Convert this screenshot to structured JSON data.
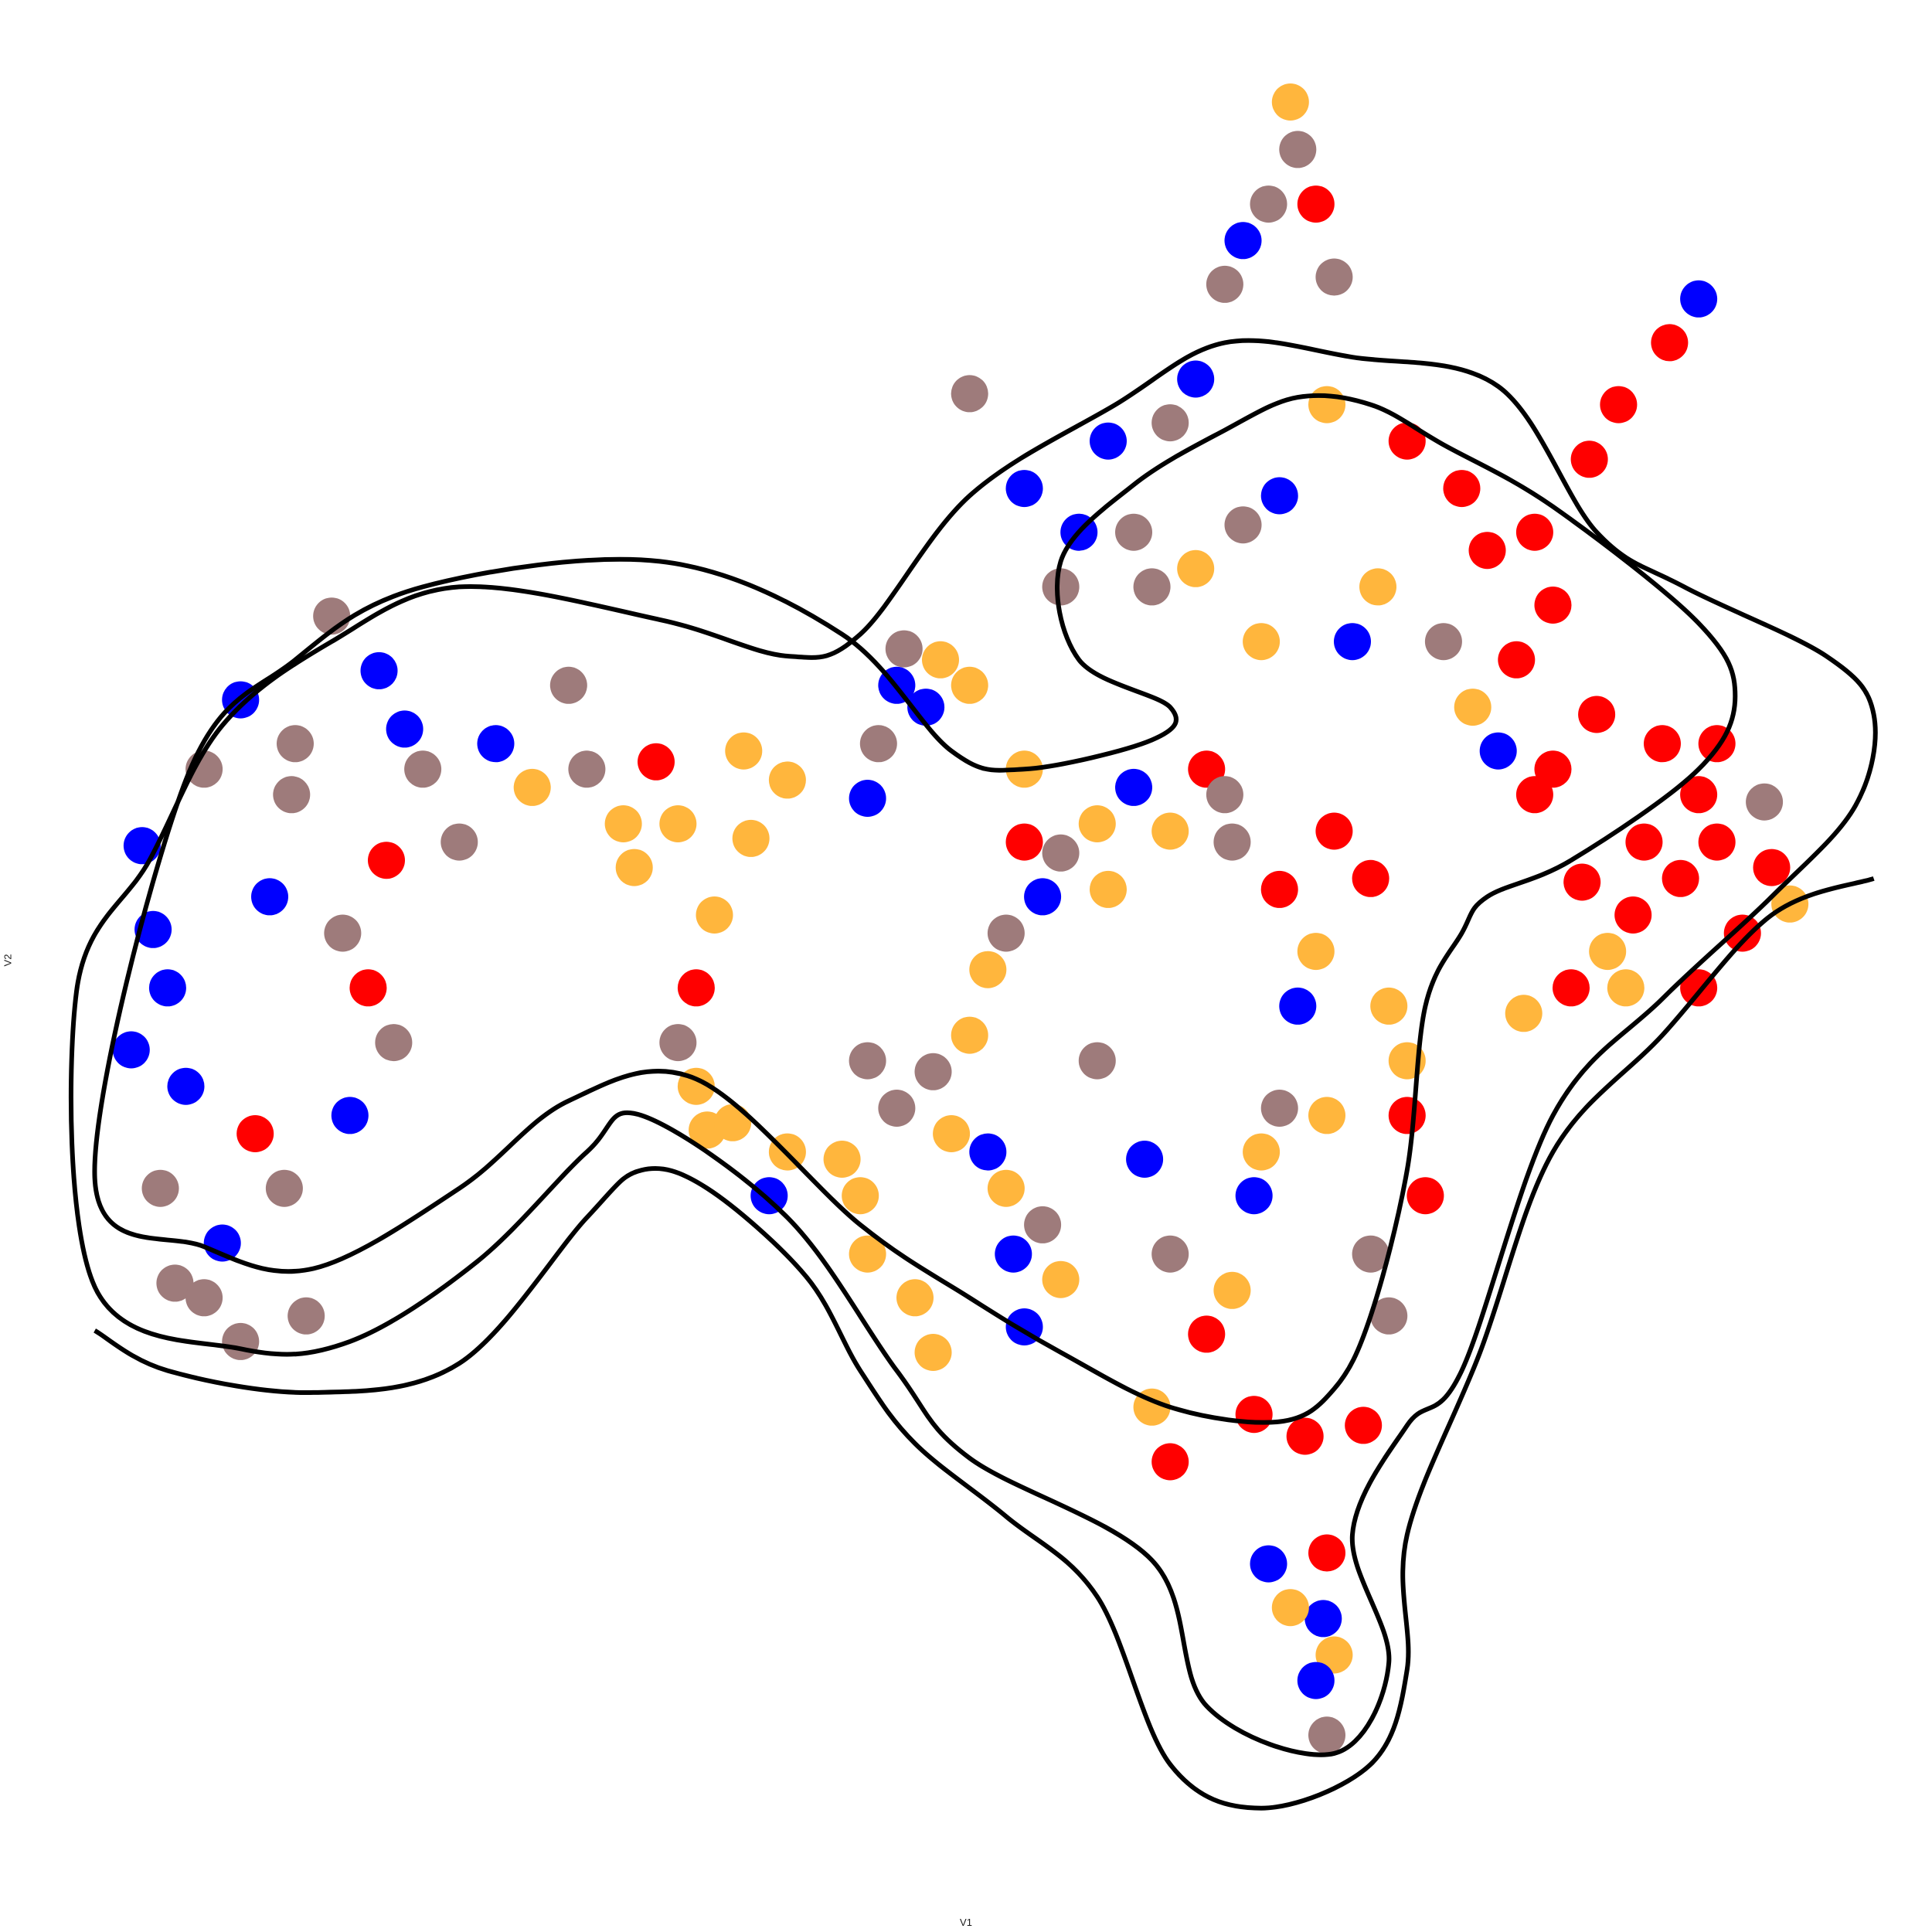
{
  "chart_data": {
    "type": "scatter",
    "title": "",
    "xlabel": "V1",
    "ylabel": "V2",
    "xlim": [
      -2.52,
      2.5
    ],
    "ylim": [
      -2.5,
      2.52
    ],
    "grid": false,
    "legend": "none",
    "point_colors": [
      "#0000ff",
      "#ff0000",
      "#ffb63d",
      "#9e7b7b"
    ],
    "contour_color": "#000000",
    "contours": [
      [
        [
          -2.4,
          -0.99
        ],
        [
          -2.2,
          -1.1
        ],
        [
          -1.8,
          -1.16
        ],
        [
          -1.4,
          -1.08
        ],
        [
          -1.05,
          -0.68
        ],
        [
          -0.9,
          -0.55
        ],
        [
          -0.72,
          -0.6
        ],
        [
          -0.45,
          -0.84
        ],
        [
          -0.3,
          -1.1
        ],
        [
          -0.15,
          -1.3
        ],
        [
          0.1,
          -1.5
        ],
        [
          0.35,
          -1.72
        ],
        [
          0.55,
          -2.18
        ],
        [
          0.8,
          -2.3
        ],
        [
          1.1,
          -2.18
        ],
        [
          1.2,
          -1.92
        ],
        [
          1.2,
          -1.55
        ],
        [
          1.4,
          -1.05
        ],
        [
          1.6,
          -0.5
        ],
        [
          1.9,
          -0.18
        ],
        [
          2.2,
          0.15
        ],
        [
          2.48,
          0.25
        ]
      ],
      [
        [
          -2.4,
          -0.87
        ],
        [
          -2.0,
          -1.04
        ],
        [
          -1.7,
          -1.02
        ],
        [
          -1.35,
          -0.8
        ],
        [
          -1.05,
          -0.5
        ],
        [
          -0.9,
          -0.4
        ],
        [
          -0.5,
          -0.68
        ],
        [
          -0.2,
          -1.1
        ],
        [
          0.0,
          -1.34
        ],
        [
          0.5,
          -1.62
        ],
        [
          0.65,
          -2.02
        ],
        [
          1.0,
          -2.15
        ],
        [
          1.15,
          -1.9
        ],
        [
          1.05,
          -1.55
        ],
        [
          1.2,
          -1.25
        ],
        [
          1.35,
          -1.1
        ],
        [
          1.6,
          -0.4
        ],
        [
          1.9,
          -0.08
        ],
        [
          2.2,
          0.2
        ],
        [
          2.43,
          0.45
        ],
        [
          2.48,
          0.7
        ],
        [
          2.35,
          0.86
        ],
        [
          1.96,
          1.05
        ],
        [
          1.72,
          1.2
        ],
        [
          1.45,
          1.6
        ],
        [
          1.05,
          1.68
        ],
        [
          0.7,
          1.72
        ],
        [
          0.4,
          1.55
        ],
        [
          0.0,
          1.3
        ],
        [
          -0.3,
          0.92
        ],
        [
          -0.5,
          0.86
        ],
        [
          -0.85,
          0.96
        ],
        [
          -1.4,
          1.05
        ],
        [
          -1.75,
          0.9
        ],
        [
          -2.05,
          0.67
        ],
        [
          -2.25,
          0.3
        ],
        [
          -2.45,
          -0.06
        ]
      ],
      [
        [
          -2.4,
          -0.57
        ],
        [
          -2.1,
          -0.76
        ],
        [
          -1.8,
          -0.82
        ],
        [
          -1.4,
          -0.6
        ],
        [
          -1.1,
          -0.36
        ],
        [
          -0.75,
          -0.3
        ],
        [
          -0.3,
          -0.7
        ],
        [
          0.0,
          -0.9
        ],
        [
          0.25,
          -1.05
        ],
        [
          0.55,
          -1.2
        ],
        [
          0.85,
          -1.24
        ],
        [
          1.0,
          -1.15
        ],
        [
          1.1,
          -0.95
        ],
        [
          1.2,
          -0.55
        ],
        [
          1.25,
          -0.1
        ],
        [
          1.35,
          0.1
        ],
        [
          1.42,
          0.2
        ],
        [
          1.65,
          0.3
        ],
        [
          2.0,
          0.55
        ],
        [
          2.1,
          0.75
        ],
        [
          2.0,
          0.95
        ],
        [
          1.6,
          1.27
        ],
        [
          1.3,
          1.44
        ],
        [
          1.1,
          1.55
        ],
        [
          0.9,
          1.57
        ],
        [
          0.7,
          1.48
        ],
        [
          0.45,
          1.33
        ],
        [
          0.25,
          1.12
        ],
        [
          0.3,
          0.85
        ],
        [
          0.55,
          0.72
        ],
        [
          0.5,
          0.63
        ],
        [
          0.15,
          0.55
        ],
        [
          -0.05,
          0.6
        ],
        [
          -0.35,
          0.92
        ],
        [
          -0.85,
          1.12
        ],
        [
          -1.5,
          1.05
        ],
        [
          -1.85,
          0.85
        ],
        [
          -2.15,
          0.52
        ]
      ]
    ],
    "points": [
      {
        "x": -2.18,
        "y": -0.86,
        "c": "#9e7b7b"
      },
      {
        "x": -2.1,
        "y": -0.9,
        "c": "#9e7b7b"
      },
      {
        "x": -2.22,
        "y": -0.6,
        "c": "#9e7b7b"
      },
      {
        "x": -2.05,
        "y": -0.75,
        "c": "#0000ff"
      },
      {
        "x": -2.15,
        "y": -0.32,
        "c": "#0000ff"
      },
      {
        "x": -2.3,
        "y": -0.22,
        "c": "#0000ff"
      },
      {
        "x": -2.2,
        "y": -0.05,
        "c": "#0000ff"
      },
      {
        "x": -2.24,
        "y": 0.11,
        "c": "#0000ff"
      },
      {
        "x": -2.27,
        "y": 0.34,
        "c": "#0000ff"
      },
      {
        "x": -2.1,
        "y": 0.55,
        "c": "#9e7b7b"
      },
      {
        "x": -2.0,
        "y": 0.74,
        "c": "#0000ff"
      },
      {
        "x": -1.85,
        "y": 0.62,
        "c": "#9e7b7b"
      },
      {
        "x": -1.62,
        "y": 0.82,
        "c": "#0000ff"
      },
      {
        "x": -1.55,
        "y": 0.66,
        "c": "#0000ff"
      },
      {
        "x": -1.5,
        "y": 0.55,
        "c": "#9e7b7b"
      },
      {
        "x": -1.6,
        "y": 0.3,
        "c": "#ff0000"
      },
      {
        "x": -1.72,
        "y": 0.1,
        "c": "#9e7b7b"
      },
      {
        "x": -1.65,
        "y": -0.05,
        "c": "#ff0000"
      },
      {
        "x": -1.58,
        "y": -0.2,
        "c": "#9e7b7b"
      },
      {
        "x": -1.86,
        "y": 0.48,
        "c": "#9e7b7b"
      },
      {
        "x": -1.92,
        "y": 0.2,
        "c": "#0000ff"
      },
      {
        "x": -1.4,
        "y": 0.35,
        "c": "#9e7b7b"
      },
      {
        "x": -1.3,
        "y": 0.62,
        "c": "#0000ff"
      },
      {
        "x": -1.2,
        "y": 0.5,
        "c": "#ffb63d"
      },
      {
        "x": -1.05,
        "y": 0.55,
        "c": "#9e7b7b"
      },
      {
        "x": -0.86,
        "y": 0.57,
        "c": "#ff0000"
      },
      {
        "x": -0.95,
        "y": 0.4,
        "c": "#ffb63d"
      },
      {
        "x": -1.1,
        "y": 0.78,
        "c": "#9e7b7b"
      },
      {
        "x": -1.75,
        "y": 0.97,
        "c": "#9e7b7b"
      },
      {
        "x": -1.7,
        "y": -0.4,
        "c": "#0000ff"
      },
      {
        "x": -1.88,
        "y": -0.6,
        "c": "#9e7b7b"
      },
      {
        "x": -1.96,
        "y": -0.45,
        "c": "#ff0000"
      },
      {
        "x": -1.82,
        "y": -0.95,
        "c": "#9e7b7b"
      },
      {
        "x": -2.0,
        "y": -1.02,
        "c": "#9e7b7b"
      },
      {
        "x": -0.7,
        "y": 0.15,
        "c": "#ffb63d"
      },
      {
        "x": -0.75,
        "y": -0.05,
        "c": "#ff0000"
      },
      {
        "x": -0.8,
        "y": -0.2,
        "c": "#9e7b7b"
      },
      {
        "x": -0.8,
        "y": 0.4,
        "c": "#ffb63d"
      },
      {
        "x": -0.5,
        "y": 0.52,
        "c": "#ffb63d"
      },
      {
        "x": -0.62,
        "y": 0.6,
        "c": "#ffb63d"
      },
      {
        "x": -0.6,
        "y": 0.36,
        "c": "#ffb63d"
      },
      {
        "x": -0.92,
        "y": 0.28,
        "c": "#ffb63d"
      },
      {
        "x": -0.75,
        "y": -0.32,
        "c": "#ffb63d"
      },
      {
        "x": -0.72,
        "y": -0.44,
        "c": "#ffb63d"
      },
      {
        "x": -0.65,
        "y": -0.42,
        "c": "#ffb63d"
      },
      {
        "x": -0.5,
        "y": -0.5,
        "c": "#ffb63d"
      },
      {
        "x": -0.55,
        "y": -0.62,
        "c": "#0000ff"
      },
      {
        "x": -0.35,
        "y": -0.52,
        "c": "#ffb63d"
      },
      {
        "x": -0.3,
        "y": -0.62,
        "c": "#ffb63d"
      },
      {
        "x": -0.28,
        "y": -0.78,
        "c": "#ffb63d"
      },
      {
        "x": -0.15,
        "y": -0.9,
        "c": "#ffb63d"
      },
      {
        "x": -0.1,
        "y": -1.05,
        "c": "#ffb63d"
      },
      {
        "x": -0.2,
        "y": -0.38,
        "c": "#9e7b7b"
      },
      {
        "x": -0.1,
        "y": -0.28,
        "c": "#9e7b7b"
      },
      {
        "x": -0.28,
        "y": -0.25,
        "c": "#9e7b7b"
      },
      {
        "x": 0.0,
        "y": -0.18,
        "c": "#ffb63d"
      },
      {
        "x": -0.05,
        "y": -0.45,
        "c": "#ffb63d"
      },
      {
        "x": 0.05,
        "y": -0.5,
        "c": "#0000ff"
      },
      {
        "x": 0.1,
        "y": -0.6,
        "c": "#ffb63d"
      },
      {
        "x": 0.12,
        "y": -0.78,
        "c": "#0000ff"
      },
      {
        "x": 0.15,
        "y": -0.98,
        "c": "#0000ff"
      },
      {
        "x": 0.25,
        "y": -0.85,
        "c": "#ffb63d"
      },
      {
        "x": 0.2,
        "y": -0.7,
        "c": "#9e7b7b"
      },
      {
        "x": 0.05,
        "y": 0.0,
        "c": "#ffb63d"
      },
      {
        "x": 0.1,
        "y": 0.1,
        "c": "#9e7b7b"
      },
      {
        "x": 0.2,
        "y": 0.2,
        "c": "#0000ff"
      },
      {
        "x": 0.25,
        "y": 0.32,
        "c": "#9e7b7b"
      },
      {
        "x": 0.15,
        "y": 0.35,
        "c": "#ff0000"
      },
      {
        "x": 0.35,
        "y": 0.4,
        "c": "#ffb63d"
      },
      {
        "x": 0.45,
        "y": 0.5,
        "c": "#0000ff"
      },
      {
        "x": 0.55,
        "y": 0.38,
        "c": "#ffb63d"
      },
      {
        "x": 0.38,
        "y": 0.22,
        "c": "#ffb63d"
      },
      {
        "x": 0.35,
        "y": -0.25,
        "c": "#9e7b7b"
      },
      {
        "x": 0.48,
        "y": -0.52,
        "c": "#0000ff"
      },
      {
        "x": 0.55,
        "y": -0.78,
        "c": "#9e7b7b"
      },
      {
        "x": 0.65,
        "y": -1.0,
        "c": "#ff0000"
      },
      {
        "x": 0.72,
        "y": -0.88,
        "c": "#ffb63d"
      },
      {
        "x": 0.5,
        "y": -1.2,
        "c": "#ffb63d"
      },
      {
        "x": 0.55,
        "y": -1.35,
        "c": "#ff0000"
      },
      {
        "x": 0.78,
        "y": -0.62,
        "c": "#0000ff"
      },
      {
        "x": 0.8,
        "y": -0.5,
        "c": "#ffb63d"
      },
      {
        "x": 0.85,
        "y": -0.38,
        "c": "#9e7b7b"
      },
      {
        "x": 0.9,
        "y": -0.1,
        "c": "#0000ff"
      },
      {
        "x": 0.95,
        "y": 0.05,
        "c": "#ffb63d"
      },
      {
        "x": 0.85,
        "y": 0.22,
        "c": "#ff0000"
      },
      {
        "x": 0.72,
        "y": 0.35,
        "c": "#9e7b7b"
      },
      {
        "x": 0.65,
        "y": 0.55,
        "c": "#ff0000"
      },
      {
        "x": 0.7,
        "y": 0.48,
        "c": "#9e7b7b"
      },
      {
        "x": 1.0,
        "y": 0.38,
        "c": "#ff0000"
      },
      {
        "x": 1.1,
        "y": 0.25,
        "c": "#ff0000"
      },
      {
        "x": 0.98,
        "y": -0.4,
        "c": "#ffb63d"
      },
      {
        "x": 1.1,
        "y": -0.78,
        "c": "#9e7b7b"
      },
      {
        "x": 0.78,
        "y": -1.22,
        "c": "#ff0000"
      },
      {
        "x": 0.92,
        "y": -1.28,
        "c": "#ff0000"
      },
      {
        "x": 0.98,
        "y": -1.6,
        "c": "#ff0000"
      },
      {
        "x": 0.97,
        "y": -1.78,
        "c": "#0000ff"
      },
      {
        "x": 1.0,
        "y": -1.88,
        "c": "#ffb63d"
      },
      {
        "x": 0.98,
        "y": -2.1,
        "c": "#9e7b7b"
      },
      {
        "x": 0.95,
        "y": -1.95,
        "c": "#0000ff"
      },
      {
        "x": 0.88,
        "y": -1.75,
        "c": "#ffb63d"
      },
      {
        "x": 0.82,
        "y": -1.63,
        "c": "#0000ff"
      },
      {
        "x": -0.18,
        "y": 0.88,
        "c": "#9e7b7b"
      },
      {
        "x": -0.2,
        "y": 0.78,
        "c": "#0000ff"
      },
      {
        "x": -0.12,
        "y": 0.72,
        "c": "#0000ff"
      },
      {
        "x": -0.25,
        "y": 0.62,
        "c": "#9e7b7b"
      },
      {
        "x": -0.28,
        "y": 0.47,
        "c": "#0000ff"
      },
      {
        "x": -0.08,
        "y": 0.85,
        "c": "#ffb63d"
      },
      {
        "x": 0.0,
        "y": 0.78,
        "c": "#ffb63d"
      },
      {
        "x": 0.15,
        "y": 0.55,
        "c": "#ffb63d"
      },
      {
        "x": 0.0,
        "y": 1.58,
        "c": "#9e7b7b"
      },
      {
        "x": 0.15,
        "y": 1.32,
        "c": "#0000ff"
      },
      {
        "x": 0.25,
        "y": 1.05,
        "c": "#9e7b7b"
      },
      {
        "x": 0.3,
        "y": 1.2,
        "c": "#0000ff"
      },
      {
        "x": 0.38,
        "y": 1.45,
        "c": "#0000ff"
      },
      {
        "x": 0.55,
        "y": 1.5,
        "c": "#9e7b7b"
      },
      {
        "x": 0.62,
        "y": 1.62,
        "c": "#0000ff"
      },
      {
        "x": 0.7,
        "y": 1.88,
        "c": "#9e7b7b"
      },
      {
        "x": 0.75,
        "y": 2.0,
        "c": "#0000ff"
      },
      {
        "x": 0.82,
        "y": 2.1,
        "c": "#9e7b7b"
      },
      {
        "x": 0.9,
        "y": 2.25,
        "c": "#9e7b7b"
      },
      {
        "x": 0.88,
        "y": 2.38,
        "c": "#ffb63d"
      },
      {
        "x": 0.95,
        "y": 2.1,
        "c": "#ff0000"
      },
      {
        "x": 1.0,
        "y": 1.9,
        "c": "#9e7b7b"
      },
      {
        "x": 0.98,
        "y": 1.55,
        "c": "#ffb63d"
      },
      {
        "x": 0.85,
        "y": 1.3,
        "c": "#0000ff"
      },
      {
        "x": 0.75,
        "y": 1.22,
        "c": "#9e7b7b"
      },
      {
        "x": 0.62,
        "y": 1.1,
        "c": "#ffb63d"
      },
      {
        "x": 0.5,
        "y": 1.05,
        "c": "#9e7b7b"
      },
      {
        "x": 0.45,
        "y": 1.2,
        "c": "#9e7b7b"
      },
      {
        "x": 1.2,
        "y": 1.45,
        "c": "#ff0000"
      },
      {
        "x": 1.35,
        "y": 1.32,
        "c": "#ff0000"
      },
      {
        "x": 1.42,
        "y": 1.15,
        "c": "#ff0000"
      },
      {
        "x": 1.55,
        "y": 1.2,
        "c": "#ff0000"
      },
      {
        "x": 1.6,
        "y": 1.0,
        "c": "#ff0000"
      },
      {
        "x": 1.5,
        "y": 0.85,
        "c": "#ff0000"
      },
      {
        "x": 1.38,
        "y": 0.72,
        "c": "#ffb63d"
      },
      {
        "x": 1.3,
        "y": 0.9,
        "c": "#9e7b7b"
      },
      {
        "x": 1.12,
        "y": 1.05,
        "c": "#ffb63d"
      },
      {
        "x": 1.05,
        "y": 0.9,
        "c": "#0000ff"
      },
      {
        "x": 0.8,
        "y": 0.9,
        "c": "#ffb63d"
      },
      {
        "x": 1.78,
        "y": 1.55,
        "c": "#ff0000"
      },
      {
        "x": 1.92,
        "y": 1.72,
        "c": "#ff0000"
      },
      {
        "x": 2.0,
        "y": 1.84,
        "c": "#0000ff"
      },
      {
        "x": 1.7,
        "y": 1.4,
        "c": "#ff0000"
      },
      {
        "x": 1.9,
        "y": 0.62,
        "c": "#ff0000"
      },
      {
        "x": 2.0,
        "y": 0.48,
        "c": "#ff0000"
      },
      {
        "x": 2.05,
        "y": 0.35,
        "c": "#ff0000"
      },
      {
        "x": 1.95,
        "y": 0.25,
        "c": "#ff0000"
      },
      {
        "x": 1.85,
        "y": 0.35,
        "c": "#ff0000"
      },
      {
        "x": 1.82,
        "y": 0.15,
        "c": "#ff0000"
      },
      {
        "x": 2.12,
        "y": 0.1,
        "c": "#ff0000"
      },
      {
        "x": 2.2,
        "y": 0.28,
        "c": "#ff0000"
      },
      {
        "x": 2.18,
        "y": 0.46,
        "c": "#9e7b7b"
      },
      {
        "x": 2.05,
        "y": 0.62,
        "c": "#ff0000"
      },
      {
        "x": 2.25,
        "y": 0.18,
        "c": "#ffb63d"
      },
      {
        "x": 1.75,
        "y": 0.05,
        "c": "#ffb63d"
      },
      {
        "x": 1.65,
        "y": -0.05,
        "c": "#ff0000"
      },
      {
        "x": 1.52,
        "y": -0.12,
        "c": "#ffb63d"
      },
      {
        "x": 1.6,
        "y": 0.55,
        "c": "#ff0000"
      },
      {
        "x": 1.45,
        "y": 0.6,
        "c": "#0000ff"
      },
      {
        "x": 1.55,
        "y": 0.48,
        "c": "#ff0000"
      },
      {
        "x": 1.68,
        "y": 0.24,
        "c": "#ff0000"
      },
      {
        "x": 1.8,
        "y": -0.05,
        "c": "#ffb63d"
      },
      {
        "x": 2.0,
        "y": -0.05,
        "c": "#ff0000"
      },
      {
        "x": 1.72,
        "y": 0.7,
        "c": "#ff0000"
      },
      {
        "x": 1.2,
        "y": -0.4,
        "c": "#ff0000"
      },
      {
        "x": 1.25,
        "y": -0.62,
        "c": "#ff0000"
      },
      {
        "x": 1.15,
        "y": -0.95,
        "c": "#9e7b7b"
      },
      {
        "x": 1.08,
        "y": -1.25,
        "c": "#ff0000"
      },
      {
        "x": 1.2,
        "y": -0.25,
        "c": "#ffb63d"
      },
      {
        "x": 1.15,
        "y": -0.1,
        "c": "#ffb63d"
      }
    ]
  }
}
